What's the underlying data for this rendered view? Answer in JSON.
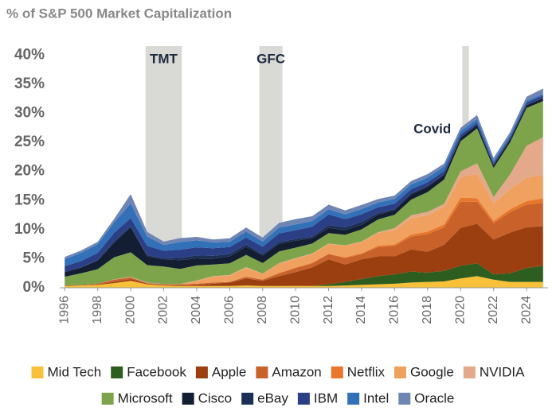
{
  "chart_data": {
    "type": "stacked_area",
    "title": "% of S&P 500 Market Capitalization",
    "x": [
      1996,
      1997,
      1998,
      1999,
      2000,
      2001,
      2002,
      2003,
      2004,
      2005,
      2006,
      2007,
      2008,
      2009,
      2010,
      2011,
      2012,
      2013,
      2014,
      2015,
      2016,
      2017,
      2018,
      2019,
      2020,
      2021,
      2022,
      2023,
      2024,
      2025
    ],
    "xlim": [
      1995.7,
      2025.3
    ],
    "xticks": [
      1996,
      1998,
      2000,
      2002,
      2004,
      2006,
      2008,
      2010,
      2012,
      2014,
      2016,
      2018,
      2020,
      2022,
      2024
    ],
    "ylim": [
      0,
      41
    ],
    "yticks": [
      {
        "value": 0,
        "label": "0%"
      },
      {
        "value": 5,
        "label": "5%"
      },
      {
        "value": 10,
        "label": "10%"
      },
      {
        "value": 15,
        "label": "15%"
      },
      {
        "value": 20,
        "label": "20%"
      },
      {
        "value": 25,
        "label": "25%"
      },
      {
        "value": 30,
        "label": "30%"
      },
      {
        "value": 35,
        "label": "35%"
      },
      {
        "value": 40,
        "label": "40%"
      }
    ],
    "grid": false,
    "annotations": [
      {
        "label": "TMT",
        "start": 2000.9,
        "end": 2003.1
      },
      {
        "label": "GFC",
        "start": 2007.8,
        "end": 2009.2
      },
      {
        "label": "Covid",
        "start": 2020.1,
        "end": 2020.5
      }
    ],
    "series": [
      {
        "name": "Mid Tech",
        "color": "#f9c139",
        "values": [
          0.3,
          0.4,
          0.5,
          0.8,
          1.2,
          0.6,
          0.4,
          0.3,
          0.3,
          0.3,
          0.3,
          0.4,
          0.3,
          0.3,
          0.3,
          0.3,
          0.3,
          0.4,
          0.5,
          0.6,
          0.7,
          0.9,
          1.0,
          1.1,
          1.6,
          2.0,
          1.4,
          1.0,
          1.0,
          1.0
        ]
      },
      {
        "name": "Facebook",
        "color": "#2e5e1f",
        "values": [
          0,
          0,
          0,
          0,
          0,
          0,
          0,
          0,
          0,
          0,
          0,
          0,
          0,
          0,
          0,
          0,
          0.3,
          0.6,
          1.0,
          1.4,
          1.6,
          1.9,
          1.6,
          1.8,
          2.2,
          2.2,
          0.9,
          1.5,
          2.4,
          2.8
        ]
      },
      {
        "name": "Apple",
        "color": "#9b3f10",
        "values": [
          0.1,
          0.05,
          0.1,
          0.2,
          0.3,
          0.1,
          0.1,
          0.1,
          0.2,
          0.4,
          0.6,
          1.2,
          0.9,
          1.7,
          2.4,
          3.2,
          4.3,
          3.0,
          3.4,
          3.4,
          3.1,
          3.8,
          3.6,
          4.5,
          6.5,
          6.8,
          6.0,
          7.0,
          7.0,
          6.8
        ]
      },
      {
        "name": "Amazon",
        "color": "#c8622a",
        "values": [
          0,
          0.05,
          0.1,
          0.4,
          0.3,
          0.1,
          0.1,
          0.2,
          0.2,
          0.2,
          0.1,
          0.3,
          0.2,
          0.5,
          0.7,
          0.7,
          0.9,
          1.1,
          0.9,
          1.6,
          1.8,
          2.2,
          3.0,
          3.0,
          4.5,
          3.8,
          2.8,
          3.5,
          3.9,
          4.0
        ]
      },
      {
        "name": "Netflix",
        "color": "#e8762b",
        "values": [
          0,
          0,
          0,
          0,
          0,
          0,
          0,
          0,
          0,
          0,
          0,
          0,
          0,
          0.05,
          0.1,
          0.1,
          0.05,
          0.15,
          0.15,
          0.25,
          0.25,
          0.35,
          0.45,
          0.5,
          0.7,
          0.6,
          0.4,
          0.5,
          0.6,
          0.8
        ]
      },
      {
        "name": "Google",
        "color": "#f0a160",
        "values": [
          0,
          0,
          0,
          0,
          0,
          0,
          0,
          0,
          0.5,
          1.0,
          1.1,
          1.5,
          1.0,
          1.6,
          1.5,
          1.5,
          1.7,
          2.0,
          1.9,
          2.2,
          2.5,
          2.8,
          2.8,
          3.0,
          3.5,
          4.2,
          3.0,
          3.5,
          4.0,
          4.0
        ]
      },
      {
        "name": "NVIDIA",
        "color": "#e3a98a",
        "values": [
          0,
          0,
          0,
          0.05,
          0.1,
          0.1,
          0.05,
          0.05,
          0.05,
          0.1,
          0.1,
          0.15,
          0.05,
          0.1,
          0.1,
          0.1,
          0.05,
          0.05,
          0.1,
          0.1,
          0.3,
          0.5,
          0.6,
          0.5,
          1.0,
          1.8,
          1.1,
          2.5,
          5.5,
          6.5
        ]
      },
      {
        "name": "Microsoft",
        "color": "#7ea44b",
        "values": [
          1.5,
          2.0,
          2.5,
          3.8,
          4.2,
          3.0,
          3.0,
          2.6,
          2.6,
          2.0,
          2.0,
          2.1,
          1.8,
          2.0,
          1.8,
          1.7,
          1.8,
          1.8,
          2.1,
          2.2,
          2.3,
          2.7,
          3.4,
          4.2,
          5.2,
          6.0,
          5.0,
          5.5,
          6.5,
          6.2
        ]
      },
      {
        "name": "Cisco",
        "color": "#141e33",
        "values": [
          0.8,
          1.0,
          1.5,
          2.5,
          4.3,
          1.5,
          1.2,
          1.5,
          1.2,
          1.0,
          1.2,
          1.4,
          1.3,
          1.3,
          1.2,
          0.9,
          0.9,
          0.8,
          0.8,
          0.8,
          0.8,
          0.9,
          0.9,
          0.8,
          0.6,
          0.6,
          0.5,
          0.5,
          0.5,
          0.5
        ]
      },
      {
        "name": "eBay",
        "color": "#1c2f55",
        "values": [
          0,
          0.02,
          0.1,
          0.3,
          0.2,
          0.2,
          0.2,
          0.4,
          0.5,
          0.5,
          0.4,
          0.4,
          0.2,
          0.3,
          0.3,
          0.3,
          0.5,
          0.5,
          0.5,
          0.3,
          0.2,
          0.2,
          0.2,
          0.15,
          0.1,
          0.1,
          0.05,
          0.05,
          0.05,
          0.05
        ]
      },
      {
        "name": "IBM",
        "color": "#2a3f86",
        "values": [
          1.0,
          1.1,
          1.2,
          1.4,
          1.4,
          1.6,
          1.3,
          1.4,
          1.4,
          1.3,
          1.2,
          1.2,
          1.3,
          1.5,
          1.5,
          1.7,
          1.8,
          1.4,
          1.3,
          1.0,
          0.9,
          0.7,
          0.6,
          0.5,
          0.4,
          0.3,
          0.3,
          0.3,
          0.4,
          0.4
        ]
      },
      {
        "name": "Intel",
        "color": "#3270b8",
        "values": [
          1.2,
          1.4,
          1.5,
          1.8,
          2.5,
          1.6,
          1.0,
          1.3,
          1.2,
          1.0,
          0.9,
          1.0,
          0.9,
          1.0,
          1.0,
          1.0,
          0.9,
          0.8,
          0.9,
          0.8,
          0.8,
          0.8,
          0.8,
          0.8,
          0.6,
          0.6,
          0.4,
          0.4,
          0.3,
          0.3
        ]
      },
      {
        "name": "Oracle",
        "color": "#6f86b5",
        "values": [
          0.4,
          0.4,
          0.4,
          0.6,
          1.6,
          0.8,
          0.6,
          0.7,
          0.6,
          0.5,
          0.6,
          0.7,
          0.7,
          0.8,
          0.9,
          0.8,
          0.8,
          0.7,
          0.7,
          0.6,
          0.6,
          0.6,
          0.6,
          0.5,
          0.6,
          0.7,
          0.5,
          0.5,
          0.7,
          0.9
        ]
      }
    ]
  }
}
